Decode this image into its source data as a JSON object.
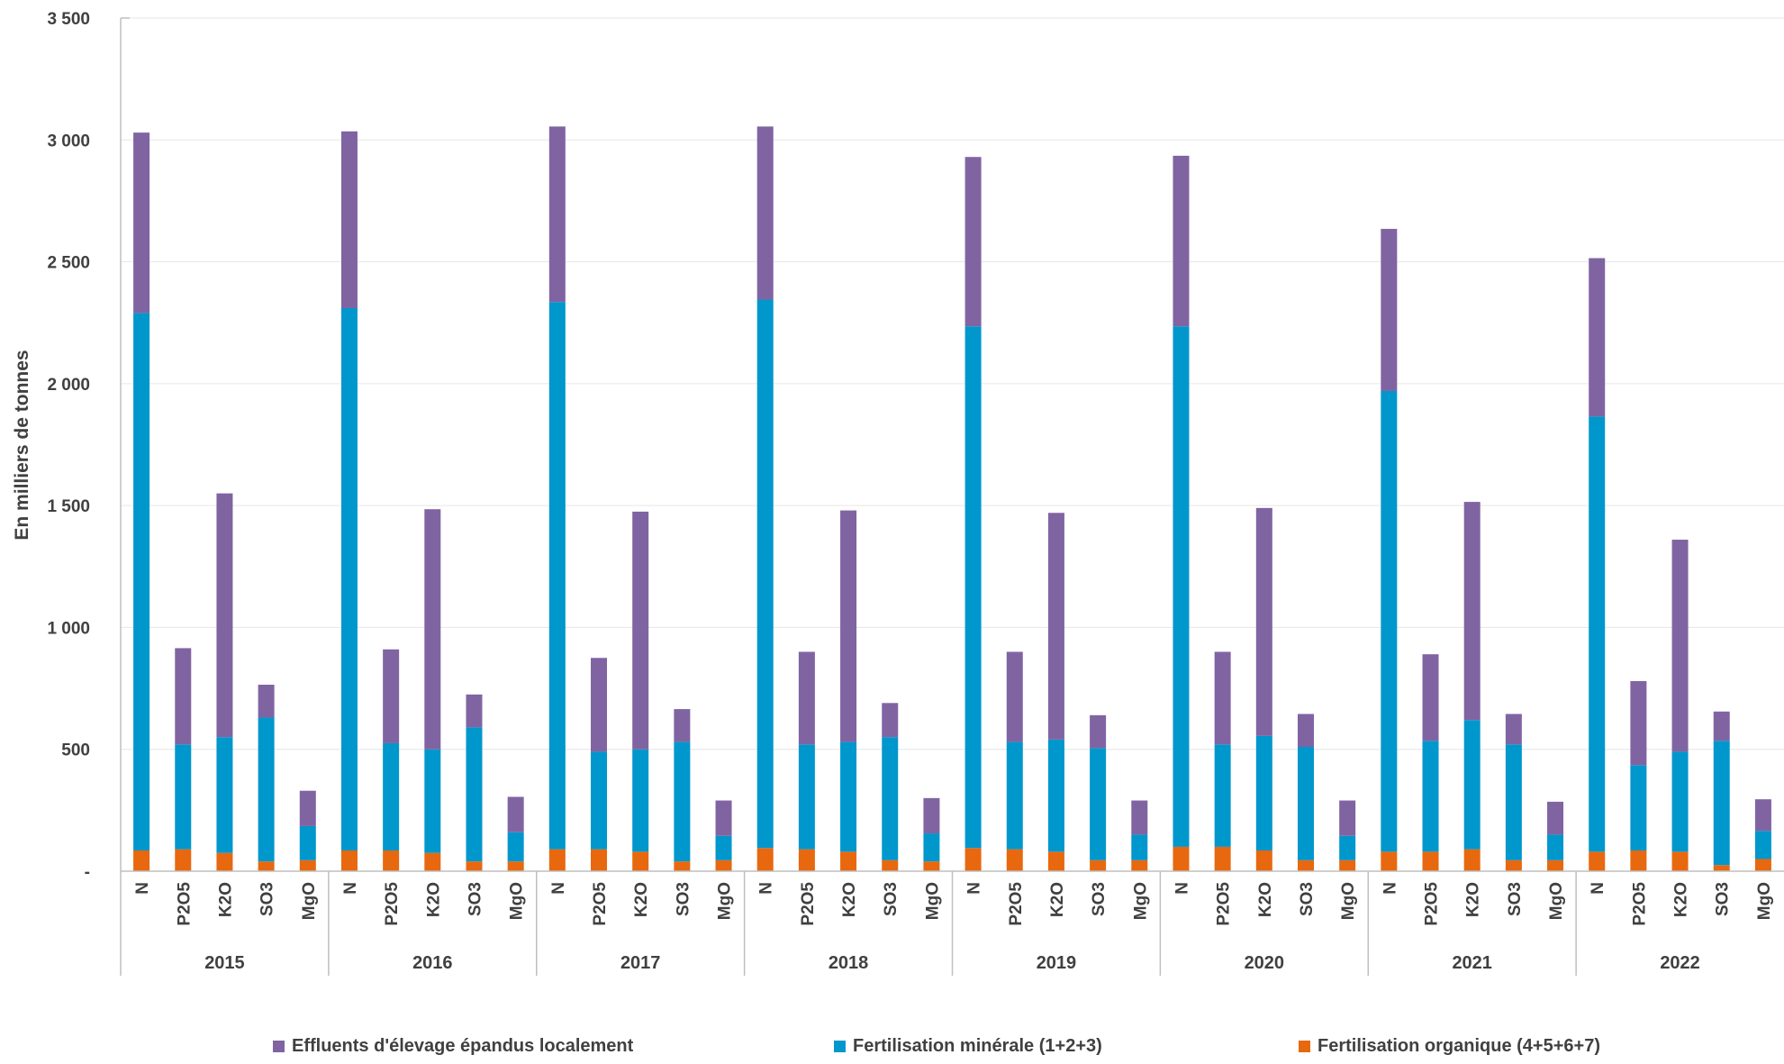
{
  "colors": {
    "effluents": "#8064A2",
    "minerale": "#0097CC",
    "organique": "#E8680F",
    "axis": "#BFBFBF",
    "grid": "#E6E6E6",
    "text": "#404040"
  },
  "chart_data": {
    "type": "bar",
    "stacked": true,
    "ylabel": "En milliers de tonnes",
    "ylim": [
      0,
      3500
    ],
    "yticks": [
      {
        "value": 0,
        "label": "-"
      },
      {
        "value": 500,
        "label": "500"
      },
      {
        "value": 1000,
        "label": "1 000"
      },
      {
        "value": 1500,
        "label": "1 500"
      },
      {
        "value": 2000,
        "label": "2 000"
      },
      {
        "value": 2500,
        "label": "2 500"
      },
      {
        "value": 3000,
        "label": "3 000"
      },
      {
        "value": 3500,
        "label": "3 500"
      }
    ],
    "grid": true,
    "legend_position": "bottom",
    "nutrients": [
      "N",
      "P2O5",
      "K2O",
      "SO3",
      "MgO"
    ],
    "years": [
      "2015",
      "2016",
      "2017",
      "2018",
      "2019",
      "2020",
      "2021",
      "2022"
    ],
    "series": [
      {
        "name": "Fertilisation organique (4+5+6+7)",
        "color_key": "organique",
        "values": [
          [
            85,
            90,
            75,
            40,
            45
          ],
          [
            85,
            85,
            75,
            40,
            40
          ],
          [
            90,
            90,
            80,
            40,
            45
          ],
          [
            95,
            90,
            80,
            45,
            40
          ],
          [
            95,
            90,
            80,
            45,
            45
          ],
          [
            100,
            100,
            85,
            45,
            45
          ],
          [
            80,
            80,
            90,
            45,
            45
          ],
          [
            80,
            85,
            80,
            25,
            50
          ]
        ]
      },
      {
        "name": "Fertilisation minérale (1+2+3)",
        "color_key": "minerale",
        "values": [
          [
            2205,
            430,
            475,
            590,
            140
          ],
          [
            2225,
            440,
            425,
            550,
            120
          ],
          [
            2245,
            400,
            420,
            490,
            100
          ],
          [
            2250,
            430,
            450,
            505,
            115
          ],
          [
            2140,
            440,
            460,
            460,
            105
          ],
          [
            2135,
            420,
            470,
            465,
            100
          ],
          [
            1890,
            455,
            530,
            475,
            105
          ],
          [
            1785,
            350,
            410,
            510,
            115
          ]
        ]
      },
      {
        "name": "Effluents d'élevage épandus localement",
        "color_key": "effluents",
        "values": [
          [
            740,
            395,
            1000,
            135,
            145
          ],
          [
            725,
            385,
            985,
            135,
            145
          ],
          [
            720,
            385,
            975,
            135,
            145
          ],
          [
            710,
            380,
            950,
            140,
            145
          ],
          [
            695,
            370,
            930,
            135,
            140
          ],
          [
            700,
            380,
            935,
            135,
            145
          ],
          [
            665,
            355,
            895,
            125,
            135
          ],
          [
            650,
            345,
            870,
            120,
            130
          ]
        ]
      }
    ]
  }
}
